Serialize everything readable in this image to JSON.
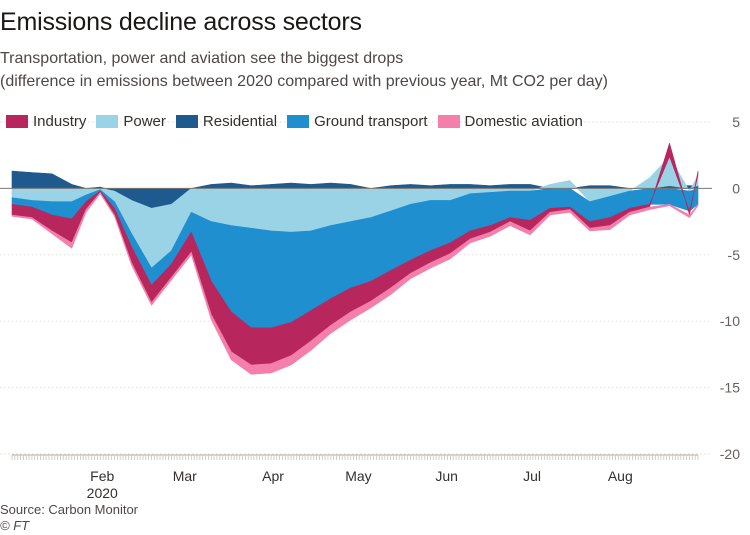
{
  "title": "Emissions decline across sectors",
  "subtitle_line1": "Transportation, power and aviation see the biggest drops",
  "subtitle_line2": "(difference in emissions between 2020 compared with previous year, Mt CO2 per day)",
  "source": "Source: Carbon Monitor",
  "credit": "© FT",
  "colors": {
    "Industry": "#b8265e",
    "Power": "#9bd3e6",
    "Residential": "#1f5a8f",
    "Ground transport": "#1f8fcf",
    "Domestic aviation": "#f47fab",
    "axis": "#66605c",
    "grid": "#e3ddd8"
  },
  "chart_data": {
    "type": "area",
    "stacking": "diverging",
    "x": [
      "Jan 01",
      "Jan 08",
      "Jan 15",
      "Jan 22",
      "Jan 27",
      "Feb 01",
      "Feb 06",
      "Feb 12",
      "Feb 19",
      "Feb 26",
      "Mar 04",
      "Mar 11",
      "Mar 18",
      "Mar 25",
      "Apr 01",
      "Apr 08",
      "Apr 15",
      "Apr 22",
      "Apr 29",
      "May 06",
      "May 13",
      "May 20",
      "May 27",
      "Jun 03",
      "Jun 10",
      "Jun 17",
      "Jun 24",
      "Jul 01",
      "Jul 08",
      "Jul 15",
      "Jul 22",
      "Jul 29",
      "Aug 05",
      "Aug 12",
      "Aug 19",
      "Aug 26",
      "Aug 29"
    ],
    "x_tick_labels": [
      "Feb",
      "Mar",
      "Apr",
      "May",
      "Jun",
      "Jul",
      "Aug"
    ],
    "x_tick_sublabel": "2020",
    "series": [
      {
        "name": "Residential",
        "values": [
          1.3,
          1.2,
          1.1,
          0.3,
          0.0,
          0.1,
          -0.2,
          -0.9,
          -1.5,
          -1.2,
          0.0,
          0.3,
          0.4,
          0.2,
          0.3,
          0.4,
          0.3,
          0.4,
          0.3,
          0.0,
          0.2,
          0.3,
          0.2,
          0.3,
          0.3,
          0.2,
          0.3,
          0.3,
          0.0,
          0.0,
          0.2,
          0.2,
          0.0,
          0.0,
          0.2,
          0.2,
          0.2
        ]
      },
      {
        "name": "Power",
        "values": [
          -0.7,
          -0.9,
          -1.0,
          -1.0,
          -0.5,
          -0.1,
          -0.8,
          -2.5,
          -4.5,
          -3.5,
          -1.8,
          -2.5,
          -2.8,
          -3.0,
          -3.2,
          -3.3,
          -3.2,
          -2.8,
          -2.5,
          -2.2,
          -1.7,
          -1.2,
          -0.9,
          -0.9,
          -0.4,
          -0.3,
          -0.2,
          -0.2,
          0.3,
          0.6,
          -1.0,
          -0.6,
          -0.2,
          0.8,
          2.2,
          -0.2,
          0.8
        ]
      },
      {
        "name": "Ground transport",
        "values": [
          -0.5,
          -0.5,
          -1.0,
          -1.3,
          -0.5,
          -0.1,
          -0.5,
          -1.0,
          -1.3,
          -1.0,
          -1.5,
          -4.5,
          -6.5,
          -7.5,
          -7.3,
          -6.8,
          -6.0,
          -5.5,
          -5.0,
          -4.8,
          -4.5,
          -4.2,
          -3.8,
          -3.2,
          -2.8,
          -2.5,
          -2.0,
          -2.2,
          -1.5,
          -1.4,
          -1.5,
          -1.6,
          -1.3,
          -1.2,
          -1.2,
          -1.5,
          -1.2
        ]
      },
      {
        "name": "Industry",
        "values": [
          -0.8,
          -0.8,
          -1.2,
          -1.8,
          -0.6,
          -0.1,
          -0.5,
          -1.2,
          -1.3,
          -1.0,
          -1.5,
          -2.5,
          -3.0,
          -2.8,
          -2.7,
          -2.5,
          -2.3,
          -2.0,
          -1.8,
          -1.5,
          -1.3,
          -1.0,
          -0.9,
          -0.8,
          -0.6,
          -0.5,
          -0.3,
          -0.8,
          -0.3,
          -0.2,
          -0.5,
          -0.6,
          -0.3,
          -0.2,
          1.0,
          -0.3,
          0.3
        ]
      },
      {
        "name": "Domestic aviation",
        "values": [
          -0.1,
          -0.1,
          -0.2,
          -0.4,
          -0.2,
          -0.1,
          -0.1,
          -0.2,
          -0.2,
          -0.2,
          -0.2,
          -0.4,
          -0.6,
          -0.7,
          -0.7,
          -0.7,
          -0.7,
          -0.6,
          -0.6,
          -0.5,
          -0.5,
          -0.4,
          -0.4,
          -0.4,
          -0.3,
          -0.3,
          -0.3,
          -0.3,
          -0.2,
          -0.2,
          -0.2,
          -0.3,
          -0.2,
          -0.2,
          -0.1,
          -0.2,
          -0.1
        ]
      }
    ],
    "legend_order": [
      "Industry",
      "Power",
      "Residential",
      "Ground transport",
      "Domestic aviation"
    ],
    "ylim": [
      -20,
      5
    ],
    "yticks": [
      5,
      0,
      -5,
      -10,
      -15,
      -20
    ],
    "y_axis_position": "right",
    "legend_position": "top-left",
    "grid": true
  }
}
